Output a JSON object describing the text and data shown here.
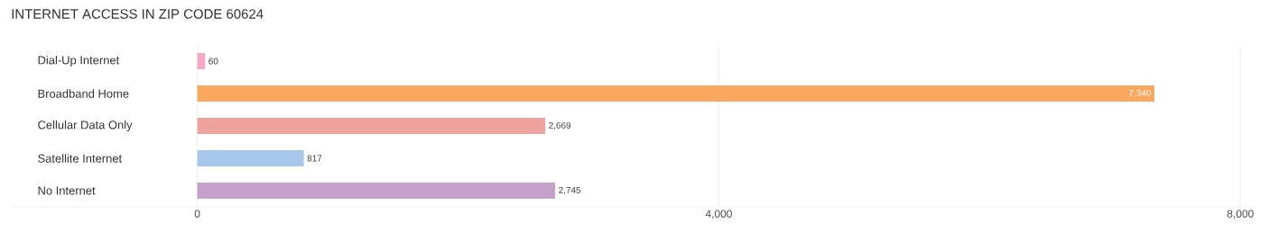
{
  "chart_data": {
    "type": "bar",
    "orientation": "horizontal",
    "title": "INTERNET ACCESS IN ZIP CODE 60624",
    "categories": [
      "Dial-Up Internet",
      "Broadband Home",
      "Cellular Data Only",
      "Satellite Internet",
      "No Internet"
    ],
    "values": [
      60,
      7340,
      2669,
      817,
      2745
    ],
    "colors": [
      "#f7a8c6",
      "#f9a85e",
      "#eea39e",
      "#a6c6ea",
      "#c4a0cb"
    ],
    "value_labels": [
      "60",
      "7,340",
      "2,669",
      "817",
      "2,745"
    ],
    "xlim": [
      -1430,
      8130
    ],
    "xticks": [
      0,
      {
        "value": 4000,
        "label": "4,000"
      },
      {
        "value": 8000,
        "label": "8,000"
      }
    ],
    "grid": "x"
  }
}
